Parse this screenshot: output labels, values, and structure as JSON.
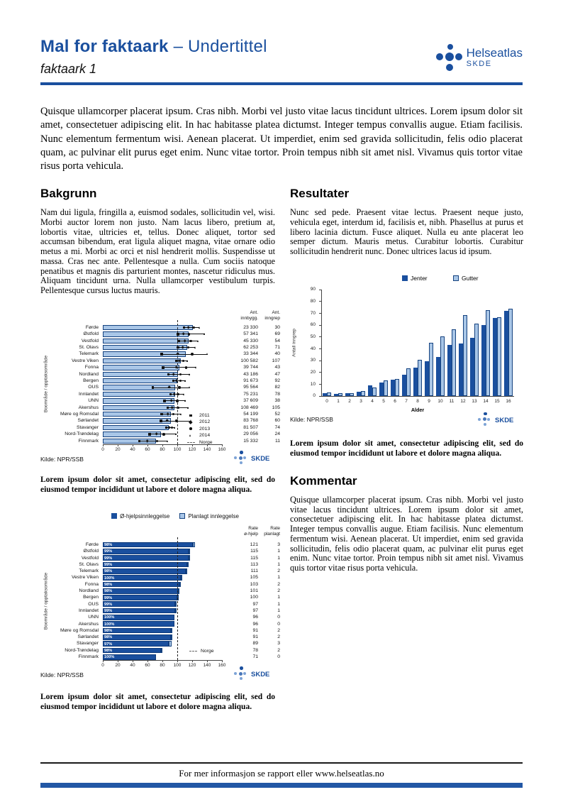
{
  "header": {
    "title_main": "Mal for faktaark",
    "title_suffix": "– Undertittel",
    "subtitle": "faktaark 1",
    "logo_name": "Helseatlas",
    "logo_sub": "SKDE"
  },
  "intro": "Quisque ullamcorper placerat ipsum. Cras nibh. Morbi vel justo vitae lacus tincidunt ultrices. Lorem ipsum dolor sit amet, consectetuer adipiscing elit. In hac habitasse platea dictumst. Integer tempus convallis augue. Etiam facilisis. Nunc elementum fermentum wisi. Aenean placerat. Ut imperdiet, enim sed gravida sollicitudin, felis odio placerat quam, ac pulvinar elit purus eget enim. Nunc vitae tortor. Proin tempus nibh sit amet nisl. Vivamus quis tortor vitae risus porta vehicula.",
  "sections": {
    "bakgrunn": {
      "heading": "Bakgrunn",
      "text": "Nam dui ligula, fringilla a, euismod sodales, sollicitudin vel, wisi. Morbi auctor lorem non justo. Nam lacus libero, pretium at, lobortis vitae, ultricies et, tellus. Donec aliquet, tortor sed accumsan bibendum, erat ligula aliquet magna, vitae ornare odio metus a mi. Morbi ac orci et nisl hendrerit mollis. Suspendisse ut massa. Cras nec ante. Pellentesque a nulla. Cum sociis natoque penatibus et magnis dis parturient montes, nascetur ridiculus mus. Aliquam tincidunt urna. Nulla ullamcorper vestibulum turpis. Pellentesque cursus luctus mauris."
    },
    "resultater": {
      "heading": "Resultater",
      "text": "Nunc sed pede. Praesent vitae lectus. Praesent neque justo, vehicula eget, interdum id, facilisis et, nibh. Phasellus at purus et libero lacinia dictum. Fusce aliquet. Nulla eu ante placerat leo semper dictum. Mauris metus. Curabitur lobortis. Curabitur sollicitudin hendrerit nunc. Donec ultrices lacus id ipsum."
    },
    "kommentar": {
      "heading": "Kommentar",
      "text": "Quisque ullamcorper placerat ipsum. Cras nibh. Morbi vel justo vitae lacus tincidunt ultrices. Lorem ipsum dolor sit amet, consectetuer adipiscing elit. In hac habitasse platea dictumst. Integer tempus convallis augue. Etiam facilisis. Nunc elementum fermentum wisi. Aenean placerat. Ut imperdiet, enim sed gravida sollicitudin, felis odio placerat quam, ac pulvinar elit purus eget enim. Nunc vitae tortor. Proin tempus nibh sit amet nisl. Vivamus quis tortor vitae risus porta vehicula."
    }
  },
  "figure_caption": "Lorem ipsum dolor sit amet, consectetur adipiscing elit, sed do eiusmod tempor incididunt ut labore et dolore magna aliqua.",
  "source_label": "Kilde: NPR/SSB",
  "skde_label": "SKDE",
  "footer": {
    "text": "For mer informasjon se rapport eller www.helseatlas.no"
  },
  "colors": {
    "brand_blue": "#1a4f9e",
    "light_blue": "#a9c6e7",
    "bar_border": "#15427f",
    "marker_black": "#111111",
    "axis_gray": "#444444"
  },
  "chart_data": [
    {
      "type": "bar",
      "orientation": "horizontal",
      "ylabel": "Boområde / opptaksområde",
      "col_headers": [
        [
          "Ant.",
          "innbygg."
        ],
        [
          "Ant.",
          "inngrep"
        ]
      ],
      "xlim": [
        0,
        160
      ],
      "xticks": [
        0,
        20,
        40,
        60,
        80,
        100,
        120,
        140,
        160
      ],
      "reference_line": 100,
      "reference_label": "Norge",
      "legend": [
        {
          "label": "2011",
          "marker": "square"
        },
        {
          "label": "2012",
          "marker": "diamond"
        },
        {
          "label": "2013",
          "marker": "circle"
        },
        {
          "label": "2014",
          "marker": "triangle"
        },
        {
          "label": "Norge",
          "marker": "dashed-line"
        }
      ],
      "source": "Kilde: NPR/SSB",
      "rows": [
        {
          "label": "Førde",
          "rate": 121,
          "years": [
            109,
            115,
            122,
            130
          ],
          "innbygg": "23 330",
          "inngrep": "30"
        },
        {
          "label": "Østfold",
          "rate": 115,
          "years": [
            101,
            108,
            116,
            137
          ],
          "innbygg": "57 341",
          "inngrep": "69"
        },
        {
          "label": "Vestfold",
          "rate": 115,
          "years": [
            102,
            110,
            118,
            128
          ],
          "innbygg": "45 330",
          "inngrep": "54"
        },
        {
          "label": "St. Olavs",
          "rate": 113,
          "years": [
            101,
            107,
            115,
            124
          ],
          "innbygg": "62 253",
          "inngrep": "71"
        },
        {
          "label": "Telemark",
          "rate": 111,
          "years": [
            79,
            101,
            120,
            141
          ],
          "innbygg": "33 344",
          "inngrep": "40"
        },
        {
          "label": "Vestre Viken",
          "rate": 105,
          "years": [
            99,
            103,
            108,
            114
          ],
          "innbygg": "100 582",
          "inngrep": "107"
        },
        {
          "label": "Fonna",
          "rate": 103,
          "years": [
            81,
            99,
            112,
            125
          ],
          "innbygg": "39 744",
          "inngrep": "43"
        },
        {
          "label": "Nordland",
          "rate": 101,
          "years": [
            88,
            95,
            104,
            117
          ],
          "innbygg": "43 186",
          "inngrep": "47"
        },
        {
          "label": "Bergen",
          "rate": 100,
          "years": [
            95,
            99,
            104,
            111
          ],
          "innbygg": "91 673",
          "inngrep": "92"
        },
        {
          "label": "OUS",
          "rate": 97,
          "years": [
            67,
            89,
            103,
            117
          ],
          "innbygg": "95 564",
          "inngrep": "82"
        },
        {
          "label": "Innlandet",
          "rate": 97,
          "years": [
            91,
            96,
            101,
            109
          ],
          "innbygg": "75 231",
          "inngrep": "78"
        },
        {
          "label": "UNN",
          "rate": 96,
          "years": [
            83,
            92,
            100,
            111
          ],
          "innbygg": "37 609",
          "inngrep": "38"
        },
        {
          "label": "Akershus",
          "rate": 96,
          "years": [
            87,
            93,
            101,
            115
          ],
          "innbygg": "108 469",
          "inngrep": "105"
        },
        {
          "label": "Møre og Romsdal",
          "rate": 91,
          "years": [
            79,
            87,
            95,
            105
          ],
          "innbygg": "54 199",
          "inngrep": "52"
        },
        {
          "label": "Sørlandet",
          "rate": 91,
          "years": [
            78,
            86,
            99,
            119
          ],
          "innbygg": "83 768",
          "inngrep": "60"
        },
        {
          "label": "Stavanger",
          "rate": 89,
          "years": [
            85,
            89,
            93,
            97
          ],
          "innbygg": "81 507",
          "inngrep": "74"
        },
        {
          "label": "Nord-Trøndelag",
          "rate": 78,
          "years": [
            63,
            72,
            82,
            99
          ],
          "innbygg": "29 056",
          "inngrep": "24"
        },
        {
          "label": "Finnmark",
          "rate": 71,
          "years": [
            49,
            60,
            73,
            87
          ],
          "innbygg": "15 332",
          "inngrep": "11"
        }
      ]
    },
    {
      "type": "bar",
      "orientation": "vertical",
      "xlabel": "Alder",
      "ylabel": "Antall inngrep",
      "ylim": [
        0,
        90
      ],
      "yticks": [
        0,
        10,
        20,
        30,
        40,
        50,
        60,
        70,
        80,
        90
      ],
      "categories": [
        "0",
        "1",
        "2",
        "3",
        "4",
        "5",
        "6",
        "7",
        "8",
        "9",
        "10",
        "11",
        "12",
        "13",
        "14",
        "15",
        "16"
      ],
      "series": [
        {
          "name": "Jenter",
          "values": [
            2,
            1.5,
            2.5,
            3.5,
            9,
            11,
            13.5,
            18,
            24,
            29,
            33,
            43,
            44,
            49,
            60,
            66,
            72
          ]
        },
        {
          "name": "Gutter",
          "values": [
            3,
            2.5,
            2,
            4,
            7,
            13,
            14.5,
            23,
            30.5,
            45,
            50.5,
            56,
            68,
            61,
            72.5,
            66.5,
            73.5
          ]
        }
      ],
      "source": "Kilde: NPR/SSB"
    },
    {
      "type": "bar",
      "orientation": "horizontal",
      "stacked": true,
      "ylabel": "Boområde / opptaksområde",
      "legend": [
        {
          "label": "Ø-hjelpsinnleggelse",
          "swatch": "dark"
        },
        {
          "label": "Planlagt innleggelse",
          "swatch": "light"
        }
      ],
      "col_headers": [
        [
          "Rate",
          "ø-hjelp"
        ],
        [
          "Rate",
          "planlagt"
        ]
      ],
      "xlim": [
        0,
        160
      ],
      "xticks": [
        0,
        20,
        40,
        60,
        80,
        100,
        120,
        140,
        160
      ],
      "reference_line": 100,
      "reference_label": "Norge",
      "source": "Kilde: NPR/SSB",
      "rows": [
        {
          "label": "Førde",
          "pct": "98%",
          "ohjelp": 121,
          "planlagt": 3
        },
        {
          "label": "Østfold",
          "pct": "99%",
          "ohjelp": 115,
          "planlagt": 1
        },
        {
          "label": "Vestfold",
          "pct": "99%",
          "ohjelp": 115,
          "planlagt": 1
        },
        {
          "label": "St. Olavs",
          "pct": "99%",
          "ohjelp": 113,
          "planlagt": 1
        },
        {
          "label": "Telemark",
          "pct": "98%",
          "ohjelp": 111,
          "planlagt": 2
        },
        {
          "label": "Vestre Viken",
          "pct": "100%",
          "ohjelp": 105,
          "planlagt": 1
        },
        {
          "label": "Fonna",
          "pct": "98%",
          "ohjelp": 103,
          "planlagt": 2
        },
        {
          "label": "Nordland",
          "pct": "98%",
          "ohjelp": 101,
          "planlagt": 2
        },
        {
          "label": "Bergen",
          "pct": "99%",
          "ohjelp": 100,
          "planlagt": 1
        },
        {
          "label": "OUS",
          "pct": "99%",
          "ohjelp": 97,
          "planlagt": 1
        },
        {
          "label": "Innlandet",
          "pct": "99%",
          "ohjelp": 97,
          "planlagt": 1
        },
        {
          "label": "UNN",
          "pct": "100%",
          "ohjelp": 96,
          "planlagt": 0
        },
        {
          "label": "Akershus",
          "pct": "100%",
          "ohjelp": 96,
          "planlagt": 0
        },
        {
          "label": "Møre og Romsdal",
          "pct": "98%",
          "ohjelp": 91,
          "planlagt": 2
        },
        {
          "label": "Sørlandet",
          "pct": "98%",
          "ohjelp": 91,
          "planlagt": 2
        },
        {
          "label": "Stavanger",
          "pct": "97%",
          "ohjelp": 89,
          "planlagt": 3
        },
        {
          "label": "Nord-Trøndelag",
          "pct": "98%",
          "ohjelp": 78,
          "planlagt": 2
        },
        {
          "label": "Finnmark",
          "pct": "100%",
          "ohjelp": 71,
          "planlagt": 0
        }
      ]
    }
  ]
}
